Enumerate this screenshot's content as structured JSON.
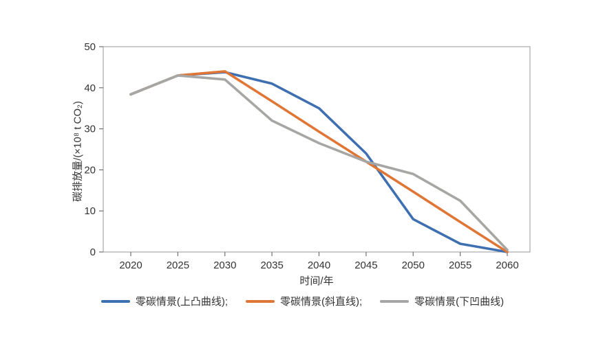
{
  "chart_data": {
    "type": "line",
    "x": [
      2020,
      2025,
      2030,
      2035,
      2040,
      2045,
      2050,
      2055,
      2060
    ],
    "series": [
      {
        "name": "零碳情景(上凸曲线)",
        "color": "#3e6fb0",
        "values": [
          38.4,
          43.0,
          43.8,
          41.0,
          35.0,
          24.0,
          8.0,
          2.0,
          0.0
        ]
      },
      {
        "name": "零碳情景(斜直线)",
        "color": "#e07636",
        "values": [
          38.4,
          43.0,
          44.0,
          36.7,
          29.3,
          22.0,
          14.7,
          7.3,
          0.0
        ]
      },
      {
        "name": "零碳情景(下凹曲线)",
        "color": "#a6a6a4",
        "values": [
          38.4,
          43.0,
          42.0,
          32.0,
          26.5,
          22.0,
          19.0,
          12.5,
          0.5
        ]
      }
    ],
    "title": "",
    "xlabel": "时间/年",
    "ylabel": "碳排放量/(×10⁸ t CO₂)",
    "xlim": [
      2017,
      2063
    ],
    "ylim": [
      0,
      50
    ],
    "yticks": [
      0,
      10,
      20,
      30,
      40,
      50
    ],
    "grid": false,
    "legend_position": "bottom"
  },
  "axis": {
    "x_label": "时间/年",
    "y_label": "碳排放量/(×10⁸ t CO₂)"
  },
  "legend": {
    "items": [
      {
        "label": "零碳情景(上凸曲线);"
      },
      {
        "label": "零碳情景(斜直线);"
      },
      {
        "label": "零碳情景(下凹曲线)"
      }
    ]
  },
  "colors": {
    "axis_line": "#a8a8a8",
    "tick": "#707070",
    "tick_label": "#333333"
  }
}
